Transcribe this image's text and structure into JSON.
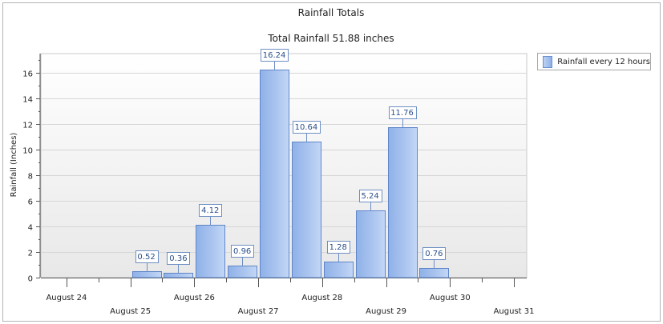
{
  "chart_data": {
    "type": "bar",
    "title": "Rainfall Totals",
    "subtitle": "Total Rainfall 51.88 inches",
    "ylabel": "Rainfall (Inches)",
    "xlabel": "",
    "ylim": [
      0,
      17.5
    ],
    "yticks": [
      0,
      2,
      4,
      6,
      8,
      10,
      12,
      14,
      16
    ],
    "x_range_days": [
      23.6,
      31.2
    ],
    "date_ticks": [
      {
        "label": "August 24",
        "day": 24
      },
      {
        "label": "August 25",
        "day": 25
      },
      {
        "label": "August 26",
        "day": 26
      },
      {
        "label": "August 27",
        "day": 27
      },
      {
        "label": "August 28",
        "day": 28
      },
      {
        "label": "August 29",
        "day": 29
      },
      {
        "label": "August 30",
        "day": 30
      },
      {
        "label": "August 31",
        "day": 31
      }
    ],
    "series": [
      {
        "name": "Rainfall every 12 hours",
        "points": [
          {
            "day": 25.25,
            "value": 0.52,
            "label": "0.52"
          },
          {
            "day": 25.75,
            "value": 0.36,
            "label": "0.36"
          },
          {
            "day": 26.25,
            "value": 4.12,
            "label": "4.12"
          },
          {
            "day": 26.75,
            "value": 0.96,
            "label": "0.96"
          },
          {
            "day": 27.25,
            "value": 16.24,
            "label": "16.24"
          },
          {
            "day": 27.75,
            "value": 10.64,
            "label": "10.64"
          },
          {
            "day": 28.25,
            "value": 1.28,
            "label": "1.28"
          },
          {
            "day": 28.75,
            "value": 5.24,
            "label": "5.24"
          },
          {
            "day": 29.25,
            "value": 11.76,
            "label": "11.76"
          },
          {
            "day": 29.75,
            "value": 0.76,
            "label": "0.76"
          }
        ]
      }
    ],
    "legend_position": "top-right",
    "grid": true
  },
  "colors": {
    "bar_light": "#bcd2f5",
    "bar_dark": "#86a9e3",
    "bar_border": "#5f86c8",
    "label_border": "#6d8fc4",
    "label_text": "#2b4f8a",
    "plot_bg_top": "#ffffff",
    "plot_bg_bottom": "#e9e9e9",
    "grid": "#d6d6d6"
  }
}
